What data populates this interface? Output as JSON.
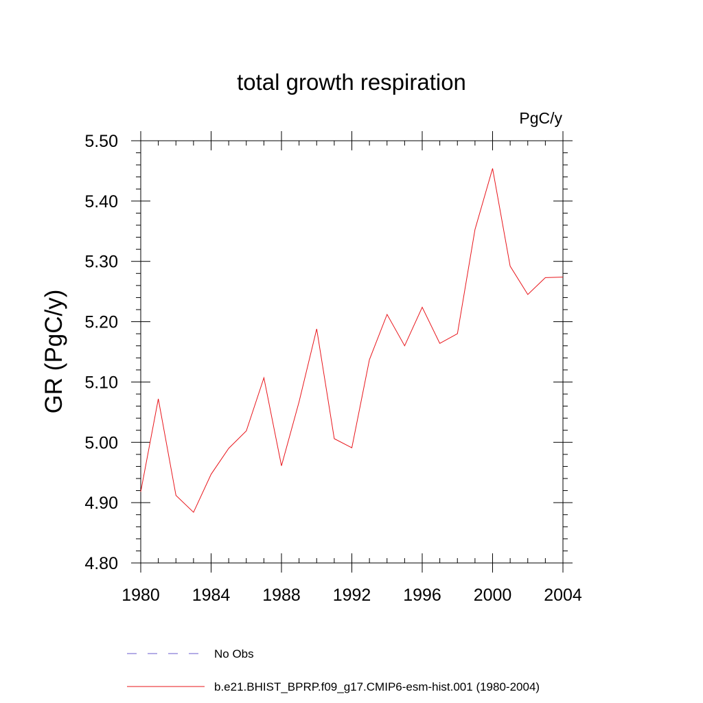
{
  "chart_data": {
    "type": "line",
    "title": "total growth respiration",
    "units_label": "PgC/y",
    "ylabel": "GR  (PgC/y)",
    "xlabel": "",
    "xlim": [
      1980,
      2004
    ],
    "ylim": [
      4.8,
      5.5
    ],
    "xticks": [
      1980,
      1984,
      1988,
      1992,
      1996,
      2000,
      2004
    ],
    "yticks": [
      4.8,
      4.9,
      5.0,
      5.1,
      5.2,
      5.3,
      5.4,
      5.5
    ],
    "ytick_labels": [
      "4.80",
      "4.90",
      "5.00",
      "5.10",
      "5.20",
      "5.30",
      "5.40",
      "5.50"
    ],
    "grid": false,
    "legend_placement": "bottom",
    "series": [
      {
        "name": "No Obs",
        "color": "#6a5acd",
        "dash": "dashed",
        "x": [],
        "values": []
      },
      {
        "name": "b.e21.BHIST_BPRP.f09_g17.CMIP6-esm-hist.001 (1980-2004)",
        "color": "#e8141a",
        "dash": "solid",
        "x": [
          1980,
          1981,
          1982,
          1983,
          1984,
          1985,
          1986,
          1987,
          1988,
          1989,
          1990,
          1991,
          1992,
          1993,
          1994,
          1995,
          1996,
          1997,
          1998,
          1999,
          2000,
          2001,
          2002,
          2003,
          2004
        ],
        "values": [
          4.918,
          5.072,
          4.912,
          4.884,
          4.947,
          4.99,
          5.019,
          5.107,
          4.961,
          5.067,
          5.188,
          5.006,
          4.991,
          5.137,
          5.212,
          5.16,
          5.224,
          5.164,
          5.18,
          5.353,
          5.454,
          5.292,
          5.245,
          5.273,
          5.274
        ]
      }
    ]
  }
}
